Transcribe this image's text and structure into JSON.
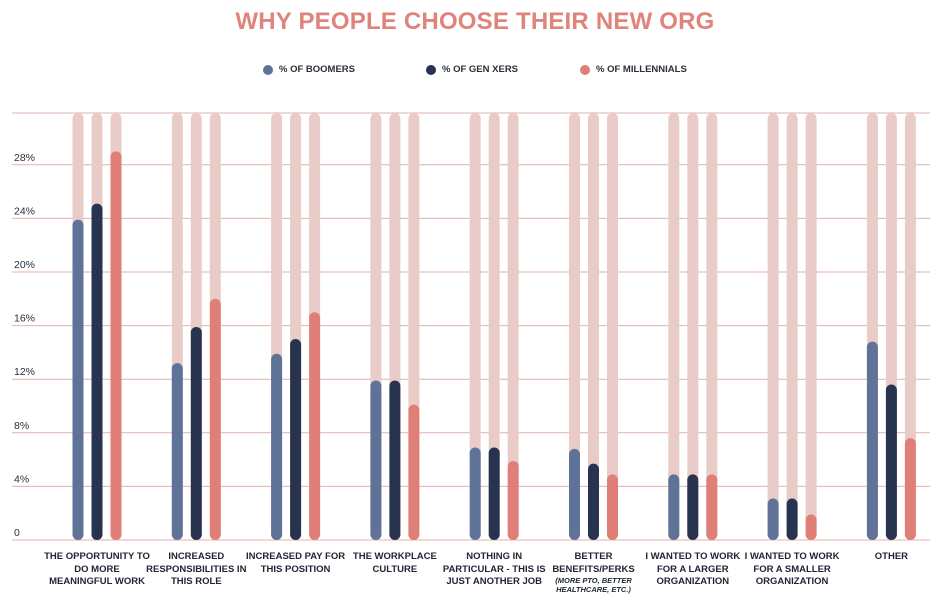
{
  "chart_data": {
    "type": "bar",
    "title": "WHY PEOPLE CHOOSE THEIR NEW ORG",
    "xlabel": "",
    "ylabel": "",
    "ylim": [
      0,
      31
    ],
    "y_ticks": [
      {
        "value": 0,
        "label": "0"
      },
      {
        "value": 4,
        "label": "4%"
      },
      {
        "value": 8,
        "label": "8%"
      },
      {
        "value": 12,
        "label": "12%"
      },
      {
        "value": 16,
        "label": "16%"
      },
      {
        "value": 20,
        "label": "20%"
      },
      {
        "value": 24,
        "label": "24%"
      },
      {
        "value": 28,
        "label": "28%"
      }
    ],
    "grid": true,
    "legend_position": "top-center",
    "categories": [
      {
        "label": "THE OPPORTUNITY TO DO MORE MEANINGFUL WORK",
        "sub": ""
      },
      {
        "label": "INCREASED RESPONSIBILITIES IN THIS ROLE",
        "sub": ""
      },
      {
        "label": "INCREASED PAY FOR THIS POSITION",
        "sub": ""
      },
      {
        "label": "THE WORKPLACE CULTURE",
        "sub": ""
      },
      {
        "label": "NOTHING IN PARTICULAR - THIS IS JUST ANOTHER JOB",
        "sub": ""
      },
      {
        "label": "BETTER BENEFITS/PERKS",
        "sub": "(MORE PTO, BETTER HEALTHCARE, ETC.)"
      },
      {
        "label": "I WANTED TO WORK FOR A LARGER ORGANIZATION",
        "sub": ""
      },
      {
        "label": "I WANTED TO WORK FOR A SMALLER ORGANIZATION",
        "sub": ""
      },
      {
        "label": "OTHER",
        "sub": ""
      }
    ],
    "series": [
      {
        "name": "% OF BOOMERS",
        "color": "#5f7298",
        "values": [
          23.9,
          13.2,
          13.9,
          11.9,
          6.9,
          6.8,
          4.9,
          3.1,
          14.8
        ]
      },
      {
        "name": "% OF GEN XERS",
        "color": "#283350",
        "values": [
          25.1,
          15.9,
          15.0,
          11.9,
          6.9,
          5.7,
          4.9,
          3.1,
          11.6
        ]
      },
      {
        "name": "% OF MILLENNIALS",
        "color": "#e07f78",
        "values": [
          29.0,
          18.0,
          17.0,
          10.1,
          5.9,
          4.9,
          4.9,
          1.9,
          7.6
        ]
      }
    ],
    "colors": {
      "title": "#e0847b",
      "track": "#e9ccc7",
      "grid": "#e3b1ab",
      "tick_text": "#2b2f3a"
    }
  }
}
